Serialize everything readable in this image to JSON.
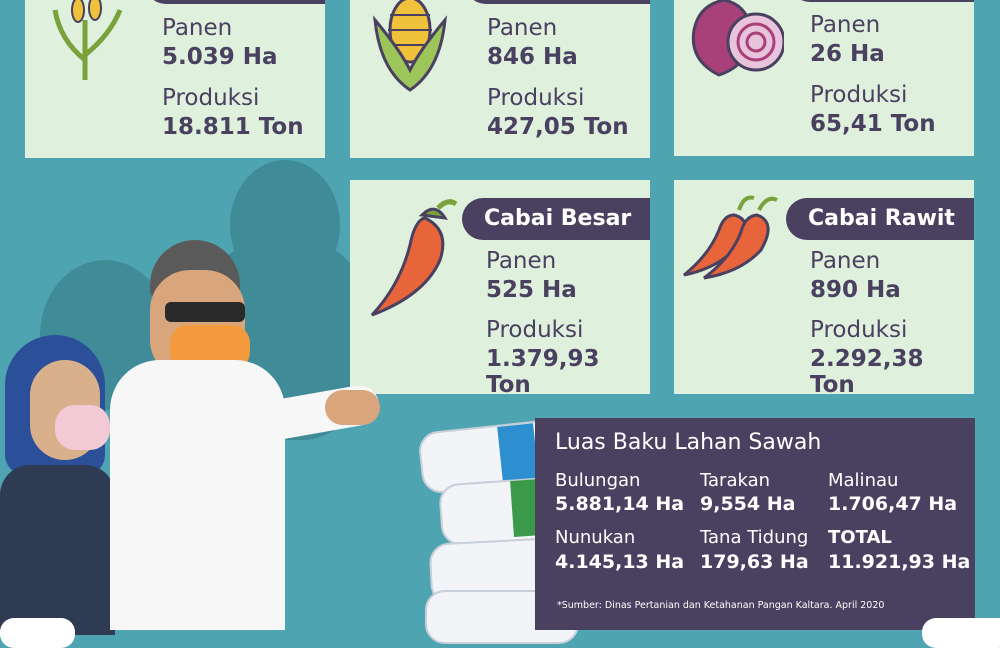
{
  "commodities": [
    {
      "name": "",
      "panen_label": "Panen",
      "panen": "5.039 Ha",
      "produksi_label": "Produksi",
      "produksi": "18.811 Ton",
      "icon": "rice-plant-icon"
    },
    {
      "name": "",
      "panen_label": "Panen",
      "panen": "846 Ha",
      "produksi_label": "Produksi",
      "produksi": "427,05 Ton",
      "icon": "corn-icon"
    },
    {
      "name": "",
      "panen_label": "Panen",
      "panen": "26 Ha",
      "produksi_label": "Produksi",
      "produksi": "65,41 Ton",
      "icon": "onion-icon"
    },
    {
      "name": "Cabai Besar",
      "panen_label": "Panen",
      "panen": "525 Ha",
      "produksi_label": "Produksi",
      "produksi": "1.379,93 Ton",
      "icon": "chili-icon"
    },
    {
      "name": "Cabai Rawit",
      "panen_label": "Panen",
      "panen": "890 Ha",
      "produksi_label": "Produksi",
      "produksi": "2.292,38 Ton",
      "icon": "bird-eye-chili-icon"
    }
  ],
  "luas_baku": {
    "title": "Luas Baku Lahan Sawah",
    "regions": [
      {
        "name": "Bulungan",
        "value": "5.881,14 Ha"
      },
      {
        "name": "Tarakan",
        "value": "9,554 Ha"
      },
      {
        "name": "Malinau",
        "value": "1.706,47 Ha"
      },
      {
        "name": "Nunukan",
        "value": "4.145,13 Ha"
      },
      {
        "name": "Tana Tidung",
        "value": "179,63 Ha"
      },
      {
        "name": "TOTAL",
        "value": "11.921,93 Ha"
      }
    ],
    "source": "*Sumber: Dinas Pertanian dan Ketahanan Pangan Kaltara. April 2020"
  },
  "colors": {
    "background": "#4fa4b1",
    "card": "#dff0dd",
    "dark": "#4a4060",
    "chili": "#e8643a"
  }
}
